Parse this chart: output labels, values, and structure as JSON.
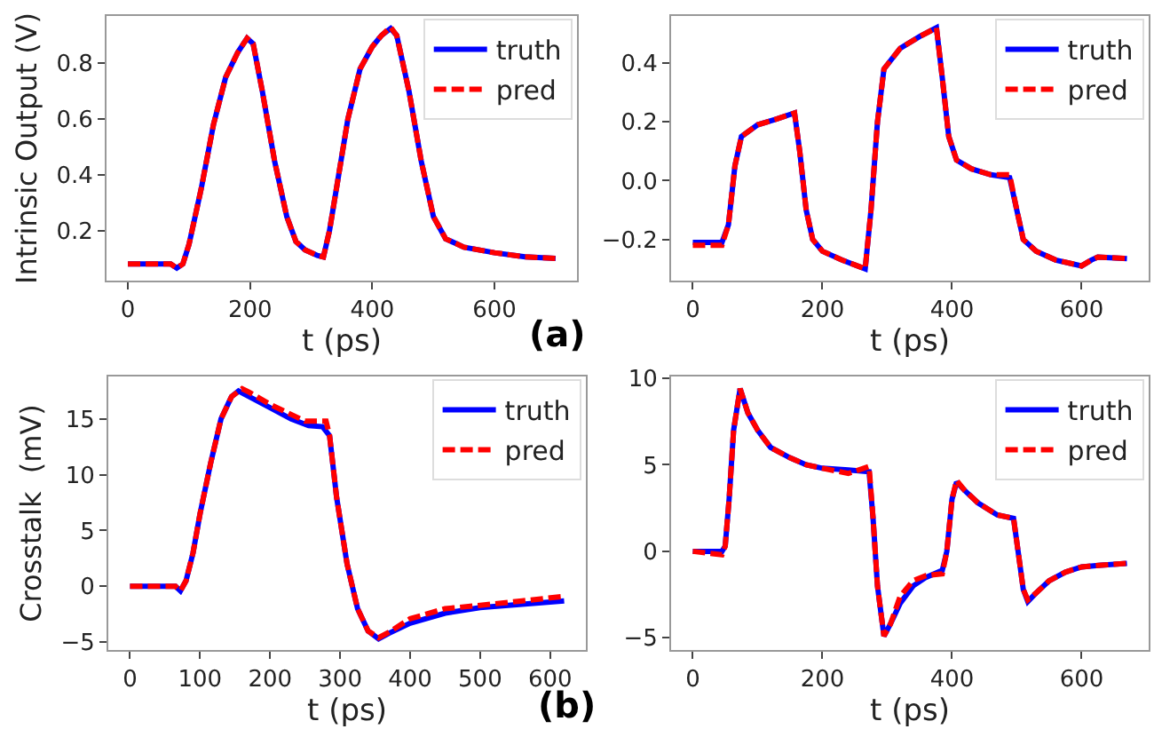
{
  "chart_data": [
    {
      "type": "line",
      "xlabel": "t (ps)",
      "ylabel": "Intrinsic Output (V)",
      "xlim": [
        -35,
        735
      ],
      "ylim": [
        0.02,
        0.97
      ],
      "xticks": [
        0,
        200,
        400,
        600
      ],
      "yticks": [
        {
          "value": 0.2,
          "label": "0.2"
        },
        {
          "value": 0.4,
          "label": "0.4"
        },
        {
          "value": 0.6,
          "label": "0.6"
        },
        {
          "value": 0.8,
          "label": "0.8"
        }
      ],
      "legend": "top right",
      "annotations": [
        "(a)"
      ],
      "series": [
        {
          "name": "truth",
          "color": "#0000ff",
          "x": [
            0,
            70,
            80,
            90,
            100,
            120,
            140,
            160,
            180,
            195,
            205,
            220,
            240,
            260,
            275,
            290,
            310,
            320,
            330,
            345,
            360,
            380,
            400,
            415,
            430,
            440,
            460,
            480,
            500,
            520,
            550,
            600,
            650,
            700
          ],
          "values": [
            0.08,
            0.08,
            0.065,
            0.08,
            0.15,
            0.35,
            0.58,
            0.75,
            0.84,
            0.89,
            0.87,
            0.7,
            0.45,
            0.25,
            0.16,
            0.13,
            0.11,
            0.105,
            0.2,
            0.4,
            0.6,
            0.78,
            0.86,
            0.9,
            0.925,
            0.9,
            0.7,
            0.45,
            0.25,
            0.17,
            0.14,
            0.12,
            0.105,
            0.1
          ]
        },
        {
          "name": "pred",
          "color": "#ff0000",
          "line_style": "dashed",
          "x": [
            0,
            70,
            80,
            90,
            100,
            120,
            140,
            160,
            180,
            195,
            205,
            220,
            240,
            260,
            275,
            290,
            310,
            320,
            330,
            345,
            360,
            380,
            400,
            415,
            430,
            440,
            460,
            480,
            500,
            520,
            550,
            600,
            650,
            700
          ],
          "values": [
            0.08,
            0.08,
            0.065,
            0.08,
            0.15,
            0.35,
            0.58,
            0.75,
            0.84,
            0.89,
            0.87,
            0.7,
            0.45,
            0.25,
            0.16,
            0.13,
            0.11,
            0.105,
            0.2,
            0.4,
            0.6,
            0.78,
            0.86,
            0.9,
            0.93,
            0.9,
            0.7,
            0.45,
            0.25,
            0.17,
            0.14,
            0.12,
            0.105,
            0.1
          ]
        }
      ]
    },
    {
      "type": "line",
      "xlabel": "t (ps)",
      "xlim": [
        -33.5,
        703.5
      ],
      "ylim": [
        -0.34,
        0.56
      ],
      "xticks": [
        0,
        200,
        400,
        600
      ],
      "yticks": [
        {
          "value": -0.2,
          "label": "−0.2"
        },
        {
          "value": 0,
          "label": "0.0"
        },
        {
          "value": 0.2,
          "label": "0.2"
        },
        {
          "value": 0.4,
          "label": "0.4"
        }
      ],
      "legend": "top right",
      "series": [
        {
          "name": "truth",
          "color": "#0000ff",
          "x": [
            0,
            45,
            55,
            65,
            75,
            100,
            130,
            157,
            165,
            175,
            185,
            200,
            230,
            266,
            275,
            285,
            295,
            320,
            350,
            376,
            385,
            395,
            407,
            430,
            460,
            489,
            500,
            510,
            530,
            560,
            600,
            615,
            625,
            670
          ],
          "values": [
            -0.21,
            -0.21,
            -0.15,
            0.05,
            0.15,
            0.19,
            0.21,
            0.23,
            0.1,
            -0.1,
            -0.2,
            -0.24,
            -0.27,
            -0.3,
            -0.1,
            0.2,
            0.38,
            0.45,
            0.49,
            0.52,
            0.35,
            0.15,
            0.07,
            0.04,
            0.02,
            0.01,
            -0.1,
            -0.2,
            -0.24,
            -0.27,
            -0.29,
            -0.27,
            -0.26,
            -0.265
          ]
        },
        {
          "name": "pred",
          "color": "#ff0000",
          "line_style": "dashed",
          "x": [
            0,
            45,
            55,
            65,
            75,
            100,
            130,
            157,
            165,
            175,
            185,
            200,
            230,
            266,
            275,
            285,
            295,
            320,
            350,
            376,
            385,
            395,
            407,
            430,
            460,
            489,
            500,
            510,
            530,
            560,
            600,
            615,
            625,
            670
          ],
          "values": [
            -0.22,
            -0.22,
            -0.15,
            0.05,
            0.15,
            0.19,
            0.21,
            0.23,
            0.1,
            -0.1,
            -0.2,
            -0.24,
            -0.27,
            -0.3,
            -0.1,
            0.2,
            0.38,
            0.45,
            0.49,
            0.52,
            0.35,
            0.15,
            0.07,
            0.04,
            0.02,
            0.02,
            -0.1,
            -0.2,
            -0.24,
            -0.27,
            -0.29,
            -0.27,
            -0.26,
            -0.265
          ]
        }
      ]
    },
    {
      "type": "line",
      "xlabel": "t (ps)",
      "ylabel": "Crosstalk  (mV)",
      "xlim": [
        -31,
        651
      ],
      "ylim": [
        -5.7,
        18.8
      ],
      "xticks": [
        0,
        100,
        200,
        300,
        400,
        500,
        600
      ],
      "yticks": [
        {
          "value": -5,
          "label": "−5"
        },
        0,
        5,
        10,
        15
      ],
      "legend": "top right",
      "annotations": [
        "(b)"
      ],
      "series": [
        {
          "name": "truth",
          "color": "#0000ff",
          "x": [
            0,
            65,
            72,
            80,
            90,
            100,
            115,
            130,
            145,
            155,
            170,
            200,
            230,
            255,
            275,
            285,
            295,
            310,
            325,
            340,
            355,
            370,
            400,
            450,
            500,
            560,
            620
          ],
          "values": [
            0,
            0,
            -0.4,
            0.5,
            3,
            6.5,
            11,
            15,
            17,
            17.5,
            17,
            16,
            15,
            14.4,
            14.3,
            13.5,
            8,
            2,
            -2,
            -4,
            -4.7,
            -4.2,
            -3.3,
            -2.4,
            -1.9,
            -1.6,
            -1.3
          ]
        },
        {
          "name": "pred",
          "color": "#ff0000",
          "line_style": "dashed",
          "x": [
            0,
            65,
            72,
            80,
            90,
            100,
            115,
            130,
            145,
            160,
            170,
            200,
            250,
            280,
            285,
            295,
            310,
            325,
            340,
            355,
            370,
            400,
            450,
            500,
            560,
            620
          ],
          "values": [
            0,
            0,
            -0.4,
            0.5,
            3,
            6.5,
            11,
            15,
            17,
            17.7,
            17.4,
            16.3,
            14.8,
            14.8,
            13.5,
            8,
            2,
            -2,
            -4,
            -4.6,
            -4.1,
            -2.9,
            -2,
            -1.7,
            -1.3,
            -0.9
          ]
        }
      ]
    },
    {
      "type": "line",
      "xlabel": "t (ps)",
      "xlim": [
        -33.5,
        703.5
      ],
      "ylim": [
        -5.7,
        10.1
      ],
      "xticks": [
        0,
        200,
        400,
        600
      ],
      "yticks": [
        {
          "value": -5,
          "label": "−5"
        },
        0,
        5,
        10
      ],
      "legend": "top right",
      "series": [
        {
          "name": "truth",
          "color": "#0000ff",
          "x": [
            0,
            45,
            50,
            56,
            63,
            73,
            85,
            100,
            120,
            150,
            175,
            200,
            240,
            272,
            278,
            285,
            295,
            305,
            320,
            340,
            360,
            385,
            392,
            400,
            407,
            420,
            440,
            470,
            495,
            502,
            510,
            517,
            530,
            550,
            575,
            600,
            630,
            670
          ],
          "values": [
            0,
            0,
            0.3,
            3,
            7,
            9.4,
            8,
            7,
            6,
            5.4,
            5,
            4.8,
            4.7,
            4.6,
            2,
            -2,
            -4.9,
            -4.2,
            -3,
            -2,
            -1.5,
            -1.1,
            0,
            3,
            4,
            3.5,
            2.8,
            2.1,
            1.9,
            0,
            -2.2,
            -2.9,
            -2.4,
            -1.7,
            -1.2,
            -0.9,
            -0.8,
            -0.7
          ]
        },
        {
          "name": "pred",
          "color": "#ff0000",
          "line_style": "dashed",
          "x": [
            0,
            45,
            50,
            56,
            63,
            73,
            85,
            100,
            120,
            150,
            175,
            200,
            240,
            272,
            278,
            285,
            295,
            305,
            320,
            340,
            360,
            385,
            392,
            400,
            407,
            420,
            440,
            470,
            495,
            502,
            510,
            517,
            530,
            550,
            575,
            600,
            630,
            670
          ],
          "values": [
            0,
            -0.2,
            0.3,
            3,
            7,
            9.4,
            8,
            7,
            6,
            5.4,
            5,
            4.8,
            4.5,
            4.9,
            2,
            -2,
            -4.9,
            -4.2,
            -2.6,
            -1.7,
            -1.4,
            -1.3,
            0,
            3,
            4.1,
            3.5,
            2.8,
            2.1,
            1.9,
            0,
            -2.2,
            -2.8,
            -2.4,
            -1.7,
            -1.2,
            -0.9,
            -0.8,
            -0.7
          ]
        }
      ]
    }
  ]
}
